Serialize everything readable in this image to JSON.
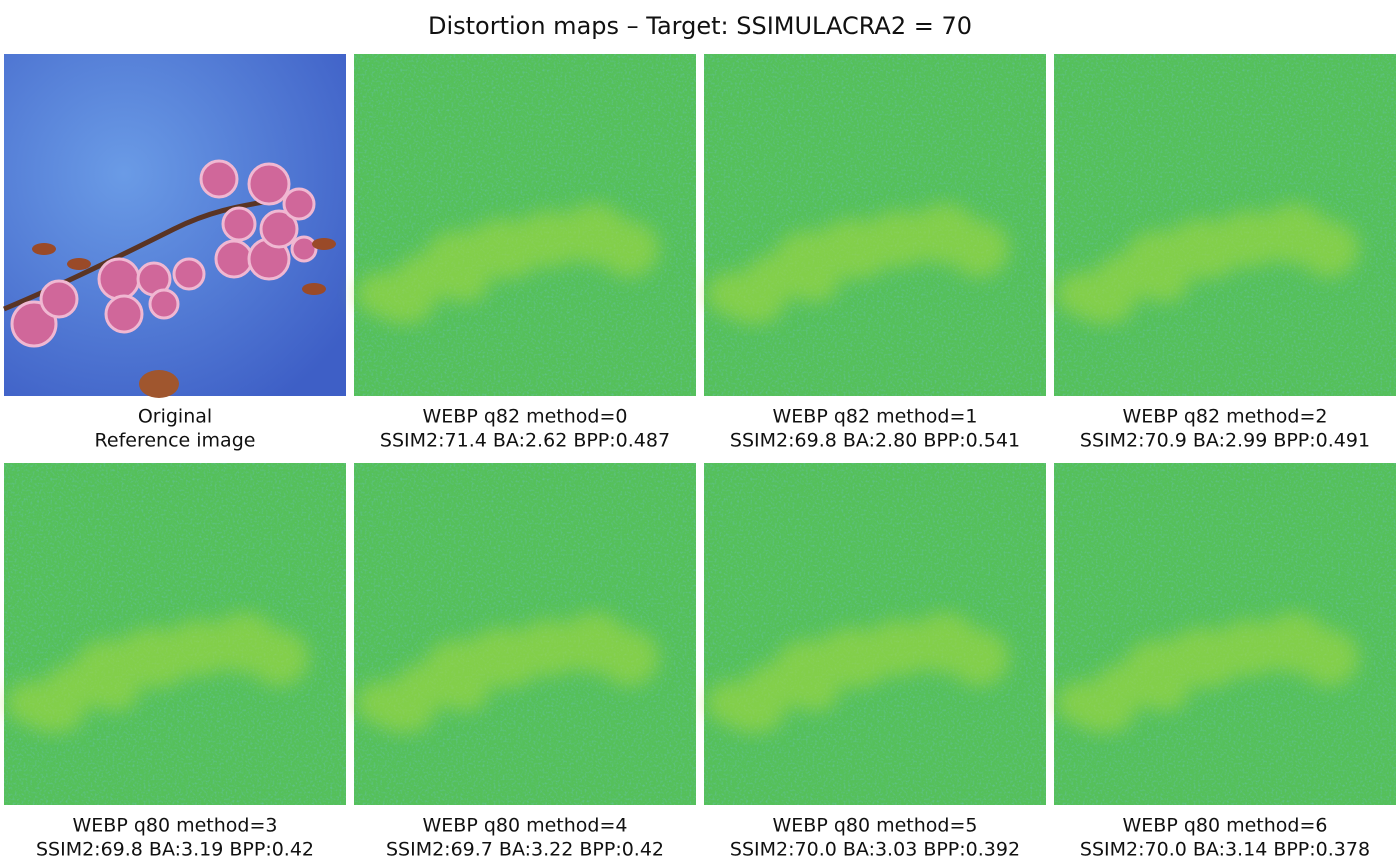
{
  "title": "Distortion maps – Target: SSIMULACRA2 = 70",
  "panels": [
    {
      "lines": [
        "Original",
        "Reference image"
      ]
    },
    {
      "lines": [
        "WEBP q82 method=0",
        "SSIM2:71.4 BA:2.62 BPP:0.487"
      ]
    },
    {
      "lines": [
        "WEBP q82 method=1",
        "SSIM2:69.8 BA:2.80 BPP:0.541"
      ]
    },
    {
      "lines": [
        "WEBP q82 method=2",
        "SSIM2:70.9 BA:2.99 BPP:0.491"
      ]
    },
    {
      "lines": [
        "WEBP q80 method=3",
        "SSIM2:69.8 BA:3.19 BPP:0.42"
      ]
    },
    {
      "lines": [
        "WEBP q80 method=4",
        "SSIM2:69.7 BA:3.22 BPP:0.42"
      ]
    },
    {
      "lines": [
        "WEBP q80 method=5",
        "SSIM2:70.0 BA:3.03 BPP:0.392"
      ]
    },
    {
      "lines": [
        "WEBP q80 method=6",
        "SSIM2:70.0 BA:3.14 BPP:0.378"
      ]
    }
  ]
}
